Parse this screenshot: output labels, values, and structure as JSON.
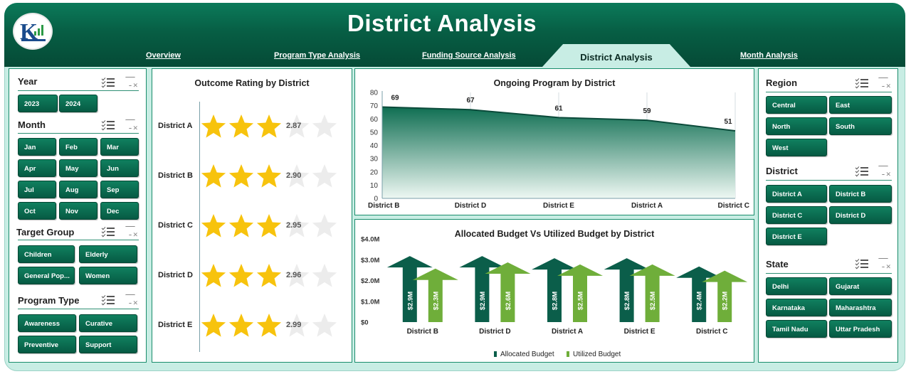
{
  "header": {
    "title": "District Analysis",
    "tabs": [
      {
        "label": "Overview",
        "active": false
      },
      {
        "label": "Program Type Analysis",
        "active": false
      },
      {
        "label": "Funding Source Analysis",
        "active": false
      },
      {
        "label": "District Analysis",
        "active": true
      },
      {
        "label": "Month Analysis",
        "active": false
      }
    ]
  },
  "slicers_left": {
    "year": {
      "title": "Year",
      "items": [
        "2023",
        "2024"
      ]
    },
    "month": {
      "title": "Month",
      "items": [
        "Jan",
        "Feb",
        "Mar",
        "Apr",
        "May",
        "Jun",
        "Jul",
        "Aug",
        "Sep",
        "Oct",
        "Nov",
        "Dec"
      ]
    },
    "target_group": {
      "title": "Target Group",
      "items": [
        "Children",
        "Elderly",
        "General Pop...",
        "Women"
      ]
    },
    "program_type": {
      "title": "Program Type",
      "items": [
        "Awareness",
        "Curative",
        "Preventive",
        "Support"
      ]
    }
  },
  "slicers_right": {
    "region": {
      "title": "Region",
      "items": [
        "Central",
        "East",
        "North",
        "South",
        "West"
      ]
    },
    "district": {
      "title": "District",
      "items": [
        "District A",
        "District B",
        "District C",
        "District D",
        "District E"
      ]
    },
    "state": {
      "title": "State",
      "items": [
        "Delhi",
        "Gujarat",
        "Karnataka",
        "Maharashtra",
        "Tamil Nadu",
        "Uttar Pradesh"
      ]
    }
  },
  "rating": {
    "title": "Outcome Rating by District",
    "max_stars": 5,
    "rows": [
      {
        "district": "District A",
        "value": 2.87,
        "value_label": "2.87"
      },
      {
        "district": "District B",
        "value": 2.9,
        "value_label": "2.90"
      },
      {
        "district": "District C",
        "value": 2.95,
        "value_label": "2.95"
      },
      {
        "district": "District D",
        "value": 2.96,
        "value_label": "2.96"
      },
      {
        "district": "District E",
        "value": 2.99,
        "value_label": "2.99"
      }
    ],
    "colors": {
      "filled": "#f7c30d",
      "empty": "#ececec"
    }
  },
  "chart_data": [
    {
      "type": "area",
      "title": "Ongoing Program by District",
      "categories": [
        "District B",
        "District D",
        "District E",
        "District A",
        "District C"
      ],
      "values": [
        69,
        67,
        61,
        59,
        51
      ],
      "ylim": [
        0,
        80
      ],
      "yticks": [
        0,
        10,
        20,
        30,
        40,
        50,
        60,
        70,
        80
      ],
      "grid": false,
      "colors": {
        "line": "#0b4a3a",
        "fill_top": "#0f6e52",
        "fill_bottom": "#eef8f3"
      }
    },
    {
      "type": "bar",
      "title": "Allocated Budget Vs Utilized Budget by District",
      "categories": [
        "District B",
        "District D",
        "District A",
        "District E",
        "District C"
      ],
      "series": [
        {
          "name": "Allocated Budget",
          "values": [
            2.9,
            2.9,
            2.8,
            2.8,
            2.4
          ],
          "labels": [
            "$2.9M",
            "$2.9M",
            "$2.8M",
            "$2.8M",
            "$2.4M"
          ],
          "color": "#0b5e4a"
        },
        {
          "name": "Utilized Budget",
          "values": [
            2.3,
            2.6,
            2.5,
            2.5,
            2.2
          ],
          "labels": [
            "$2.3M",
            "$2.6M",
            "$2.5M",
            "$2.5M",
            "$2.2M"
          ],
          "color": "#6fae3a"
        }
      ],
      "ylim": [
        0,
        4.0
      ],
      "ytick_labels": [
        "$0",
        "$1.0M",
        "$2.0M",
        "$3.0M",
        "$4.0M"
      ],
      "legend": "bottom"
    }
  ]
}
